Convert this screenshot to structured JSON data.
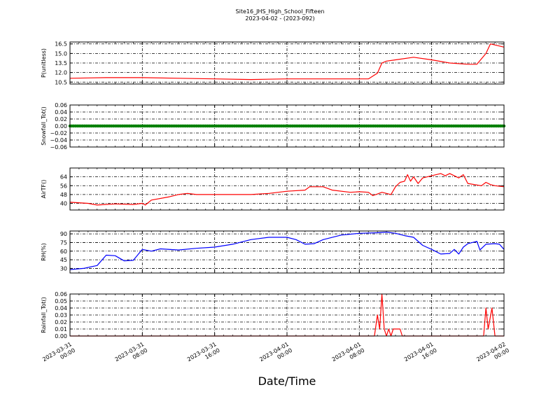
{
  "figure": {
    "title": "Site16_JHS_High_School_Fifteen",
    "subtitle": "2023-04-02 - (2023-092)",
    "xlabel": "Date/Time",
    "x_ticks": [
      {
        "line1": "2023-03-31",
        "line2": "00:00"
      },
      {
        "line1": "2023-03-31",
        "line2": "08:00"
      },
      {
        "line1": "2023-03-31",
        "line2": "16:00"
      },
      {
        "line1": "2023-04-01",
        "line2": "00:00"
      },
      {
        "line1": "2023-04-01",
        "line2": "08:00"
      },
      {
        "line1": "2023-04-01",
        "line2": "16:00"
      },
      {
        "line1": "2023-04-02",
        "line2": "00:00"
      }
    ]
  },
  "chart_data": [
    {
      "type": "line",
      "ylabel": "P(unitless)",
      "color": "#ff0000",
      "ylim": [
        10.2,
        16.8
      ],
      "yticks": [
        10.5,
        12.0,
        13.5,
        15.0,
        16.5
      ],
      "ytick_labels": [
        "10.5",
        "12.0",
        "13.5",
        "15.0",
        "16.5"
      ],
      "xlim": [
        "2023-03-31 00:00",
        "2023-04-02 00:00"
      ],
      "grid": true,
      "points": [
        [
          "2023-03-31 00:00",
          11.1
        ],
        [
          "2023-03-31 04:00",
          11.2
        ],
        [
          "2023-03-31 08:00",
          11.2
        ],
        [
          "2023-03-31 12:00",
          11.1
        ],
        [
          "2023-03-31 16:00",
          11.0
        ],
        [
          "2023-03-31 20:00",
          10.9
        ],
        [
          "2023-04-01 00:00",
          11.0
        ],
        [
          "2023-04-01 04:00",
          11.0
        ],
        [
          "2023-04-01 08:00",
          11.0
        ],
        [
          "2023-04-01 09:00",
          11.0
        ],
        [
          "2023-04-01 10:00",
          11.9
        ],
        [
          "2023-04-01 10:30",
          13.5
        ],
        [
          "2023-04-01 11:00",
          13.8
        ],
        [
          "2023-04-01 12:00",
          14.0
        ],
        [
          "2023-04-01 14:00",
          14.4
        ],
        [
          "2023-04-01 16:00",
          14.0
        ],
        [
          "2023-04-01 18:00",
          13.5
        ],
        [
          "2023-04-01 20:00",
          13.3
        ],
        [
          "2023-04-01 21:00",
          13.3
        ],
        [
          "2023-04-01 22:00",
          15.0
        ],
        [
          "2023-04-01 22:30",
          16.5
        ],
        [
          "2023-04-02 00:00",
          16.0
        ]
      ]
    },
    {
      "type": "scatter",
      "ylabel": "Snowfall_Tot()",
      "color": "#008000",
      "ylim": [
        -0.06,
        0.06
      ],
      "yticks": [
        -0.06,
        -0.04,
        -0.02,
        0.0,
        0.02,
        0.04,
        0.06
      ],
      "ytick_labels": [
        "−0.06",
        "−0.04",
        "−0.02",
        "0.00",
        "0.02",
        "0.04",
        "0.06"
      ],
      "xlim": [
        "2023-03-31 00:00",
        "2023-04-02 00:00"
      ],
      "grid": true,
      "points_summary": "constant 0.0 at every sample",
      "points": [
        [
          "2023-03-31 00:00",
          0.0
        ],
        [
          "2023-03-31 08:00",
          0.0
        ],
        [
          "2023-03-31 16:00",
          0.0
        ],
        [
          "2023-04-01 00:00",
          0.0
        ],
        [
          "2023-04-01 08:00",
          0.0
        ],
        [
          "2023-04-01 16:00",
          0.0
        ],
        [
          "2023-04-02 00:00",
          0.0
        ]
      ]
    },
    {
      "type": "line",
      "ylabel": "AirTF()",
      "color": "#ff0000",
      "ylim": [
        34,
        72
      ],
      "yticks": [
        40,
        48,
        56,
        64
      ],
      "ytick_labels": [
        "40",
        "48",
        "56",
        "64"
      ],
      "xlim": [
        "2023-03-31 00:00",
        "2023-04-02 00:00"
      ],
      "grid": true,
      "points": [
        [
          "2023-03-31 00:00",
          41
        ],
        [
          "2023-03-31 02:00",
          40
        ],
        [
          "2023-03-31 03:00",
          38.5
        ],
        [
          "2023-03-31 05:00",
          39.5
        ],
        [
          "2023-03-31 07:00",
          39
        ],
        [
          "2023-03-31 08:00",
          40
        ],
        [
          "2023-03-31 08:20",
          38.5
        ],
        [
          "2023-03-31 09:00",
          43
        ],
        [
          "2023-03-31 11:00",
          46
        ],
        [
          "2023-03-31 12:00",
          48
        ],
        [
          "2023-03-31 13:00",
          49
        ],
        [
          "2023-03-31 14:00",
          48
        ],
        [
          "2023-03-31 18:00",
          48
        ],
        [
          "2023-03-31 20:00",
          48
        ],
        [
          "2023-03-31 22:00",
          49
        ],
        [
          "2023-04-01 00:00",
          51
        ],
        [
          "2023-04-01 02:00",
          52
        ],
        [
          "2023-04-01 02:30",
          55
        ],
        [
          "2023-04-01 04:00",
          55
        ],
        [
          "2023-04-01 05:00",
          52
        ],
        [
          "2023-04-01 07:00",
          50
        ],
        [
          "2023-04-01 08:00",
          50.5
        ],
        [
          "2023-04-01 09:00",
          50
        ],
        [
          "2023-04-01 09:30",
          47
        ],
        [
          "2023-04-01 10:30",
          50
        ],
        [
          "2023-04-01 11:30",
          48
        ],
        [
          "2023-04-01 12:00",
          55
        ],
        [
          "2023-04-01 12:30",
          59
        ],
        [
          "2023-04-01 13:00",
          60
        ],
        [
          "2023-04-01 13:20",
          66
        ],
        [
          "2023-04-01 13:40",
          60
        ],
        [
          "2023-04-01 14:00",
          64
        ],
        [
          "2023-04-01 14:30",
          58
        ],
        [
          "2023-04-01 15:00",
          63
        ],
        [
          "2023-04-01 16:00",
          65
        ],
        [
          "2023-04-01 17:00",
          67
        ],
        [
          "2023-04-01 17:30",
          65
        ],
        [
          "2023-04-01 18:00",
          67
        ],
        [
          "2023-04-01 19:00",
          63
        ],
        [
          "2023-04-01 19:30",
          66
        ],
        [
          "2023-04-01 20:00",
          58
        ],
        [
          "2023-04-01 21:30",
          56
        ],
        [
          "2023-04-01 22:00",
          59
        ],
        [
          "2023-04-01 22:30",
          57
        ],
        [
          "2023-04-01 23:00",
          56
        ],
        [
          "2023-04-02 00:00",
          55
        ]
      ]
    },
    {
      "type": "line",
      "ylabel": "RH(%)",
      "color": "#0000ff",
      "ylim": [
        22,
        95
      ],
      "yticks": [
        30,
        45,
        60,
        75,
        90
      ],
      "ytick_labels": [
        "30",
        "45",
        "60",
        "75",
        "90"
      ],
      "xlim": [
        "2023-03-31 00:00",
        "2023-04-02 00:00"
      ],
      "grid": true,
      "points": [
        [
          "2023-03-31 00:00",
          28
        ],
        [
          "2023-03-31 01:30",
          30
        ],
        [
          "2023-03-31 03:00",
          35
        ],
        [
          "2023-03-31 04:00",
          53
        ],
        [
          "2023-03-31 05:00",
          52
        ],
        [
          "2023-03-31 06:00",
          43
        ],
        [
          "2023-03-31 07:00",
          44
        ],
        [
          "2023-03-31 08:00",
          63
        ],
        [
          "2023-03-31 09:00",
          60
        ],
        [
          "2023-03-31 10:00",
          64
        ],
        [
          "2023-03-31 12:00",
          62
        ],
        [
          "2023-03-31 14:00",
          65
        ],
        [
          "2023-03-31 16:00",
          67
        ],
        [
          "2023-03-31 18:00",
          72
        ],
        [
          "2023-03-31 20:00",
          80
        ],
        [
          "2023-03-31 22:00",
          84
        ],
        [
          "2023-04-01 00:00",
          84
        ],
        [
          "2023-04-01 01:00",
          80
        ],
        [
          "2023-04-01 02:00",
          72
        ],
        [
          "2023-04-01 03:00",
          73
        ],
        [
          "2023-04-01 04:00",
          80
        ],
        [
          "2023-04-01 06:00",
          88
        ],
        [
          "2023-04-01 08:00",
          91
        ],
        [
          "2023-04-01 10:00",
          92
        ],
        [
          "2023-04-01 11:00",
          93
        ],
        [
          "2023-04-01 12:00",
          91
        ],
        [
          "2023-04-01 13:00",
          87
        ],
        [
          "2023-04-01 14:00",
          84
        ],
        [
          "2023-04-01 15:00",
          70
        ],
        [
          "2023-04-01 16:00",
          63
        ],
        [
          "2023-04-01 17:00",
          55
        ],
        [
          "2023-04-01 18:00",
          56
        ],
        [
          "2023-04-01 18:30",
          63
        ],
        [
          "2023-04-01 19:00",
          55
        ],
        [
          "2023-04-01 19:30",
          67
        ],
        [
          "2023-04-01 20:00",
          73
        ],
        [
          "2023-04-01 21:00",
          77
        ],
        [
          "2023-04-01 21:20",
          62
        ],
        [
          "2023-04-01 22:00",
          72
        ],
        [
          "2023-04-01 23:00",
          73
        ],
        [
          "2023-04-01 23:30",
          72
        ],
        [
          "2023-04-02 00:00",
          63
        ]
      ]
    },
    {
      "type": "line",
      "ylabel": "Rainfall_Tot()",
      "color": "#ff0000",
      "ylim": [
        0.0,
        0.06
      ],
      "yticks": [
        0.0,
        0.01,
        0.02,
        0.03,
        0.04,
        0.05,
        0.06
      ],
      "ytick_labels": [
        "0.00",
        "0.01",
        "0.02",
        "0.03",
        "0.04",
        "0.05",
        "0.06"
      ],
      "xlim": [
        "2023-03-31 00:00",
        "2023-04-02 00:00"
      ],
      "grid": true,
      "points": [
        [
          "2023-03-31 00:00",
          0.0
        ],
        [
          "2023-04-01 09:40",
          0.0
        ],
        [
          "2023-04-01 10:00",
          0.03
        ],
        [
          "2023-04-01 10:15",
          0.01
        ],
        [
          "2023-04-01 10:30",
          0.06
        ],
        [
          "2023-04-01 10:45",
          0.01
        ],
        [
          "2023-04-01 11:00",
          0.0
        ],
        [
          "2023-04-01 11:15",
          0.01
        ],
        [
          "2023-04-01 11:30",
          0.0
        ],
        [
          "2023-04-01 11:45",
          0.01
        ],
        [
          "2023-04-01 12:30",
          0.01
        ],
        [
          "2023-04-01 12:45",
          0.0
        ],
        [
          "2023-04-01 21:45",
          0.0
        ],
        [
          "2023-04-01 22:00",
          0.04
        ],
        [
          "2023-04-01 22:15",
          0.01
        ],
        [
          "2023-04-01 22:40",
          0.04
        ],
        [
          "2023-04-01 23:00",
          0.0
        ],
        [
          "2023-04-02 00:00",
          0.0
        ]
      ]
    }
  ]
}
